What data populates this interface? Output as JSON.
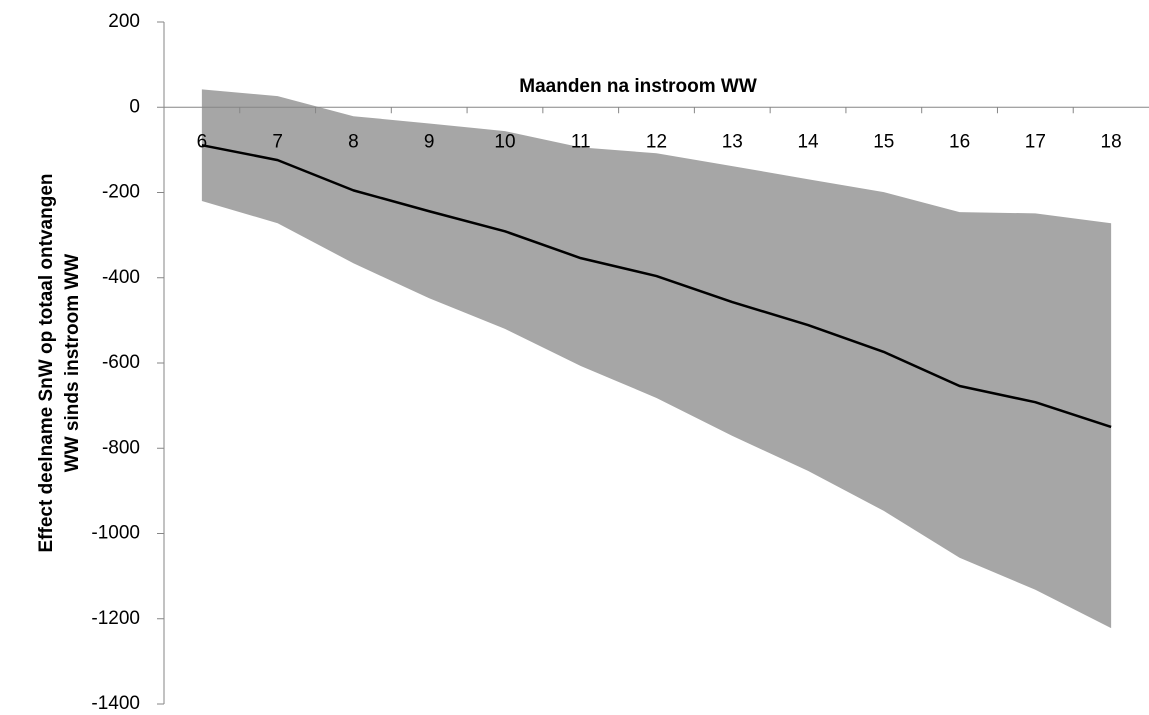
{
  "chart_data": {
    "type": "line",
    "x_label": "Maanden na instroom WW",
    "y_label": [
      "Effect deelname SnW op totaal ontvangen",
      "WW sinds instroom WW"
    ],
    "categories": [
      "6",
      "7",
      "8",
      "9",
      "10",
      "11",
      "12",
      "13",
      "14",
      "15",
      "16",
      "17",
      "18"
    ],
    "series": [
      {
        "color": "#000000",
        "values": [
          -89,
          -124,
          -195,
          -244,
          -291,
          -354,
          -396,
          -457,
          -511,
          -574,
          -654,
          -692,
          -750
        ]
      }
    ],
    "band": {
      "color": "#a6a6a6",
      "upper": [
        42,
        26,
        -21,
        -38,
        -56,
        -94,
        -108,
        -138,
        -169,
        -199,
        -246,
        -249,
        -272
      ],
      "lower": [
        -220,
        -272,
        -366,
        -448,
        -520,
        -607,
        -682,
        -771,
        -853,
        -947,
        -1057,
        -1132,
        -1222
      ]
    },
    "ylim": [
      -1400,
      200
    ],
    "yticks": [
      -1400,
      -1200,
      -1000,
      -800,
      -600,
      -400,
      -200,
      0,
      200
    ],
    "grid": false
  }
}
